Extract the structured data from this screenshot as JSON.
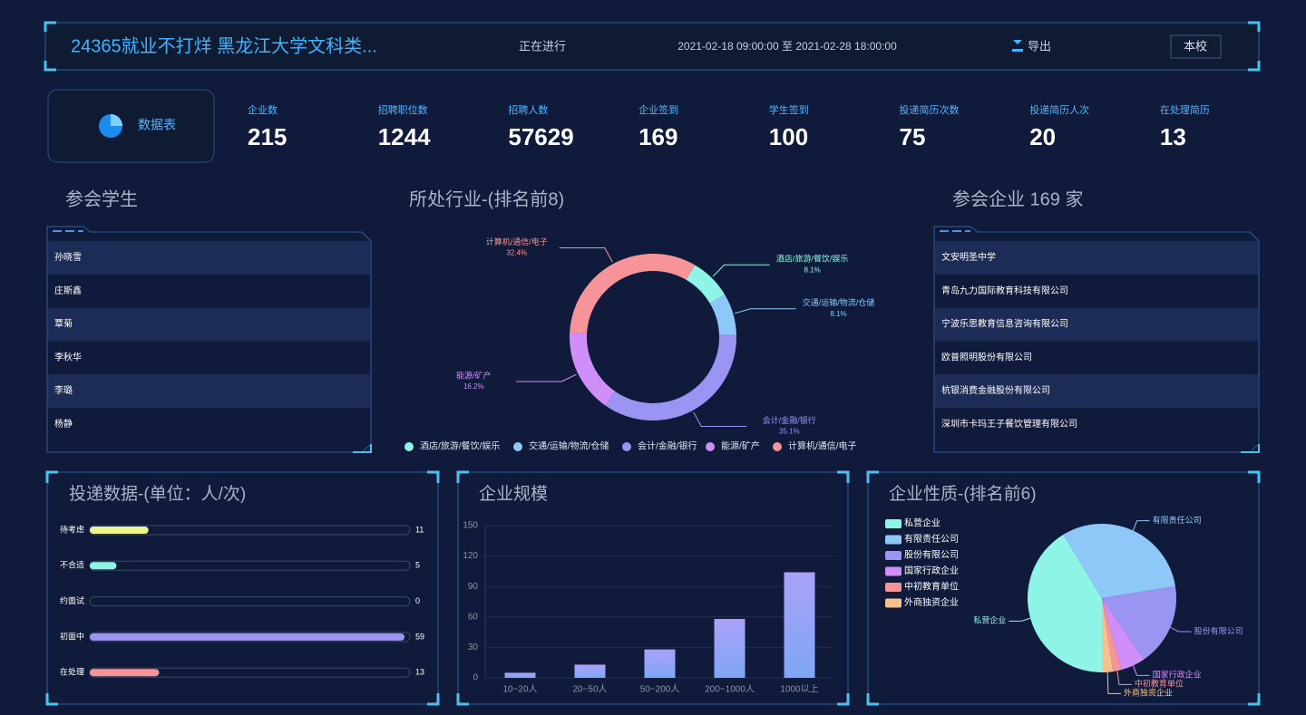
{
  "header": {
    "title": "24365就业不打烊 黑龙江大学文科类...",
    "status": "正在进行",
    "time": "2021-02-18 09:00:00 至 2021-02-28 18:00:00",
    "export": "导出",
    "scope": "本校"
  },
  "stats": {
    "label": "数据表",
    "items": [
      {
        "label": "企业数",
        "value": 215
      },
      {
        "label": "招聘职位数",
        "value": 1244
      },
      {
        "label": "招聘人数",
        "value": 57629
      },
      {
        "label": "企业签到",
        "value": 169
      },
      {
        "label": "学生签到",
        "value": 100
      },
      {
        "label": "投递简历次数",
        "value": 75
      },
      {
        "label": "投递简历人次",
        "value": 20
      },
      {
        "label": "在处理简历",
        "value": 13
      }
    ]
  },
  "students": {
    "title": "参会学生",
    "names": [
      "孙晓雪",
      "庄斯鑫",
      "覃菊",
      "李秋华",
      "李璐",
      "杨静"
    ]
  },
  "companies": {
    "title": "参会企业 169 家",
    "names": [
      "文安明圣中学",
      "青岛九力国际教育科技有限公司",
      "宁波乐思教育信息咨询有限公司",
      "欧普照明股份有限公司",
      "杭银消费金融股份有限公司",
      "深圳市卡玛王子餐饮管理有限公司"
    ]
  },
  "chart_data": [
    {
      "type": "donut",
      "title": "所处行业-(排名前8)",
      "categories": [
        "酒店/旅游/餐饮/娱乐",
        "交通/运输/物流/仓储",
        "会计/金融/银行",
        "能源/矿产",
        "计算机/通信/电子"
      ],
      "values": [
        8.1,
        8.1,
        35.1,
        16.2,
        32.4
      ],
      "value_labels": [
        "8.1%",
        "8.1%",
        "35.1%",
        "16.2%",
        "32.4%"
      ],
      "colors": [
        "#8ef5e6",
        "#8ec8f8",
        "#9b94f3",
        "#d08ef8",
        "#f6949a"
      ]
    },
    {
      "type": "progress",
      "title": "投递数据-(单位：人/次)",
      "categories": [
        "待考虑",
        "不合适",
        "约面试",
        "初面中",
        "在处理"
      ],
      "values": [
        11,
        5,
        0,
        59,
        13
      ],
      "colors": [
        "#eef58e",
        "#8ef5e6",
        "#8ec8f8",
        "#9b94f3",
        "#f6949a"
      ],
      "xlim": [
        0,
        60
      ]
    },
    {
      "type": "bar",
      "title": "企业规模",
      "categories": [
        "10~20人",
        "20~50人",
        "50~200人",
        "200~1000人",
        "1000以上"
      ],
      "values": [
        5,
        13,
        28,
        58,
        104
      ],
      "colors": [
        "#aaa2f8",
        "#7fa6f6"
      ],
      "ylim": [
        0,
        150
      ],
      "yticks": [
        0,
        30,
        60,
        90,
        120,
        150
      ],
      "grid": true
    },
    {
      "type": "pie",
      "title": "企业性质-(排名前6)",
      "categories": [
        "私营企业",
        "有限责任公司",
        "股份有限公司",
        "国家行政企业",
        "中初教育单位",
        "外商独资企业"
      ],
      "values": [
        69,
        52,
        30,
        9,
        3,
        4
      ],
      "colors": [
        "#8ef5e6",
        "#8ec8f8",
        "#9b94f3",
        "#d08ef8",
        "#f6949a",
        "#f5c28e"
      ],
      "legend": "top-left"
    }
  ]
}
